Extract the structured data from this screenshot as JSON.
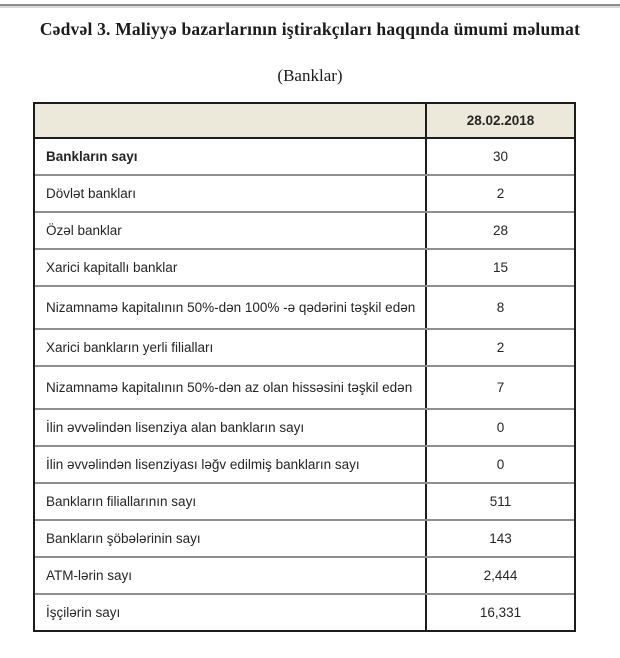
{
  "page": {
    "title": "Cədvəl 3. Maliyyə bazarlarının iştirakçıları haqqında ümumi məlumat",
    "subtitle": "(Banklar)"
  },
  "table": {
    "header": {
      "label": "",
      "date": "28.02.2018"
    },
    "rows": [
      {
        "label": "Bankların sayı",
        "value": "30"
      },
      {
        "label": "Dövlət bankları",
        "value": "2"
      },
      {
        "label": "Özəl banklar",
        "value": "28"
      },
      {
        "label": "Xarici kapitallı banklar",
        "value": "15"
      },
      {
        "label": "Nizamnamə kapitalının 50%-dən 100% -ə qədərini təşkil edən",
        "value": "8"
      },
      {
        "label": "Xarici bankların yerli filialları",
        "value": "2"
      },
      {
        "label": "Nizamnamə kapitalının 50%-dən az olan hissəsini  təşkil edən",
        "value": "7"
      },
      {
        "label": "İlin əvvəlindən lisenziya alan bankların sayı",
        "value": "0"
      },
      {
        "label": "İlin əvvəlindən lisenziyası ləğv edilmiş bankların sayı",
        "value": "0"
      },
      {
        "label": "Bankların filiallarının sayı",
        "value": "511"
      },
      {
        "label": "Bankların şöbələrinin sayı",
        "value": "143"
      },
      {
        "label": "ATM-lərin sayı",
        "value": "2,444"
      },
      {
        "label": "İşçilərin sayı",
        "value": "16,331"
      }
    ],
    "colors": {
      "header_bg": "#ece9db",
      "border_dark": "#1c1c1c",
      "border_gray": "#8f8f8f"
    }
  }
}
